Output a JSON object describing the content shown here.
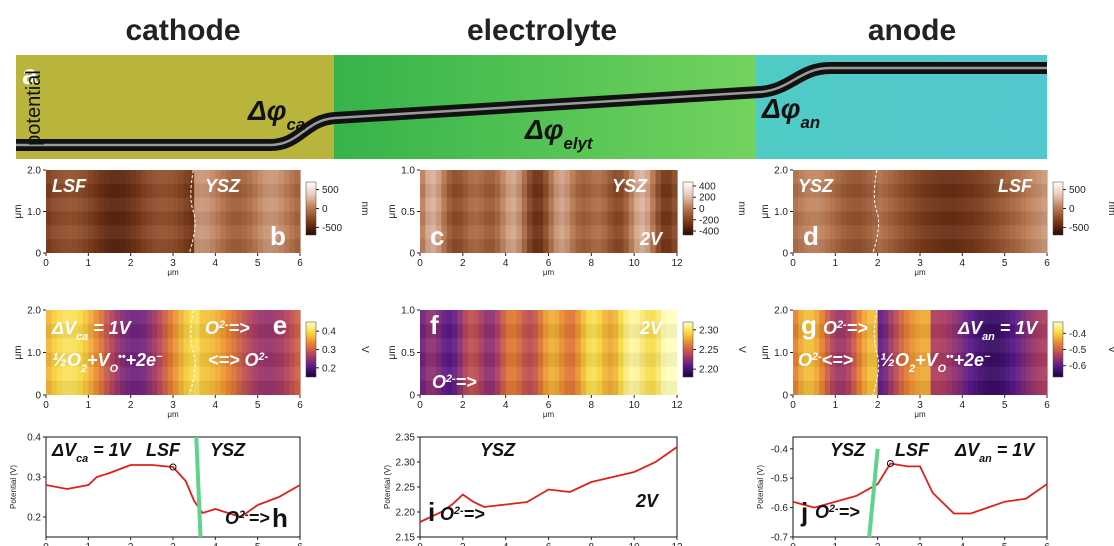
{
  "column_titles": [
    "cathode",
    "electrolyte",
    "anode"
  ],
  "schematic": {
    "label": "a",
    "ylabel": "potential",
    "annotations": [
      [
        "Δφ",
        {
          "sub": "ca"
        }
      ],
      [
        "Δφ",
        {
          "sub": "elyt"
        }
      ],
      [
        "Δφ",
        {
          "sub": "an"
        }
      ]
    ]
  },
  "chart_data": [
    {
      "type": "heatmap",
      "label": "b",
      "xlabel": "μm",
      "ylabel": "μm",
      "xlim": [
        0,
        6
      ],
      "xticks": [
        0,
        1,
        2,
        3,
        4,
        5,
        6
      ],
      "ylim": [
        0,
        2
      ],
      "yticks": [
        0,
        {
          "value": 1,
          "label": "1.0"
        },
        {
          "value": 2,
          "label": "2.0"
        }
      ],
      "colormap": [
        "#2a0800",
        "#7a3a1a",
        "#b87850",
        "#e8c8b8",
        "#ffffff"
      ],
      "clim": [
        -700,
        700
      ],
      "cticks": [
        500,
        0,
        -500
      ],
      "cunit": "nm",
      "annotations": [
        [
          "LSF"
        ],
        [
          "YSZ"
        ]
      ]
    },
    {
      "type": "heatmap",
      "label": "c",
      "xlabel": "μm",
      "ylabel": "μm",
      "xlim": [
        0,
        12
      ],
      "xticks": [
        0,
        2,
        4,
        6,
        8,
        10,
        12
      ],
      "ylim": [
        0,
        1
      ],
      "yticks": [
        0,
        0.5,
        {
          "value": 1,
          "label": "1.0"
        }
      ],
      "colormap": [
        "#2a0800",
        "#7a3a1a",
        "#b87850",
        "#e8c8b8",
        "#ffffff"
      ],
      "clim": [
        -470,
        470
      ],
      "cticks": [
        400,
        200,
        0,
        -200,
        -400
      ],
      "cunit": "nm",
      "annotations": [
        [
          "YSZ"
        ],
        [
          "2V"
        ]
      ]
    },
    {
      "type": "heatmap",
      "label": "d",
      "xlabel": "μm",
      "ylabel": "μm",
      "xlim": [
        0,
        6
      ],
      "xticks": [
        0,
        1,
        2,
        3,
        4,
        5,
        6
      ],
      "ylim": [
        0,
        2
      ],
      "yticks": [
        0,
        {
          "value": 1,
          "label": "1.0"
        },
        {
          "value": 2,
          "label": "2.0"
        }
      ],
      "colormap": [
        "#2a0800",
        "#7a3a1a",
        "#b87850",
        "#e8c8b8",
        "#ffffff"
      ],
      "clim": [
        -700,
        700
      ],
      "cticks": [
        500,
        0,
        -500
      ],
      "cunit": "nm",
      "annotations": [
        [
          "YSZ"
        ],
        [
          "LSF"
        ]
      ]
    },
    {
      "type": "heatmap",
      "label": "e",
      "xlabel": "μm",
      "ylabel": "μm",
      "xlim": [
        0,
        6
      ],
      "xticks": [
        0,
        1,
        2,
        3,
        4,
        5,
        6
      ],
      "ylim": [
        0,
        2
      ],
      "yticks": [
        0,
        {
          "value": 1,
          "label": "1.0"
        },
        {
          "value": 2,
          "label": "2.0"
        }
      ],
      "colormap": [
        "#1a0040",
        "#5a1a8a",
        "#b04060",
        "#e88030",
        "#f8d840",
        "#ffffc0"
      ],
      "clim": [
        0.15,
        0.45
      ],
      "cticks": [
        0.4,
        0.3,
        0.2
      ],
      "cunit": "V",
      "annotations": [
        [
          "ΔV",
          {
            "sub": "ca"
          },
          " = 1V"
        ],
        [
          "O",
          {
            "sup": "2-"
          },
          "=>"
        ],
        [
          "½O",
          {
            "sub": "2"
          },
          "+V",
          {
            "sub": "O"
          },
          {
            "sup": "••"
          },
          "+2e",
          {
            "sup": "−"
          }
        ],
        [
          "<=> O",
          {
            "sup": "2-"
          }
        ]
      ]
    },
    {
      "type": "heatmap",
      "label": "f",
      "xlabel": "μm",
      "ylabel": "μm",
      "xlim": [
        0,
        12
      ],
      "xticks": [
        0,
        2,
        4,
        6,
        8,
        10,
        12
      ],
      "ylim": [
        0,
        1
      ],
      "yticks": [
        0,
        0.5,
        {
          "value": 1,
          "label": "1.0"
        }
      ],
      "colormap": [
        "#1a0040",
        "#5a1a8a",
        "#b04060",
        "#e88030",
        "#f8d840",
        "#ffffc0"
      ],
      "clim": [
        2.18,
        2.32
      ],
      "cticks": [
        {
          "value": 2.3,
          "label": "2.30"
        },
        2.25,
        {
          "value": 2.2,
          "label": "2.20"
        }
      ],
      "cunit": "V",
      "annotations": [
        [
          "2V"
        ],
        [
          "O",
          {
            "sup": "2-"
          },
          "=>"
        ]
      ]
    },
    {
      "type": "heatmap",
      "label": "g",
      "xlabel": "μm",
      "ylabel": "μm",
      "xlim": [
        0,
        6
      ],
      "xticks": [
        0,
        1,
        2,
        3,
        4,
        5,
        6
      ],
      "ylim": [
        0,
        2
      ],
      "yticks": [
        0,
        {
          "value": 1,
          "label": "1.0"
        },
        {
          "value": 2,
          "label": "2.0"
        }
      ],
      "colormap": [
        "#1a0040",
        "#5a1a8a",
        "#b04060",
        "#e88030",
        "#f8d840",
        "#ffffc0"
      ],
      "clim": [
        -0.67,
        -0.33
      ],
      "cticks": [
        -0.4,
        -0.5,
        -0.6
      ],
      "cunit": "V",
      "annotations": [
        [
          "O",
          {
            "sup": "2-"
          },
          "=>"
        ],
        [
          "ΔV",
          {
            "sub": "an"
          },
          " = 1V"
        ],
        [
          "O",
          {
            "sup": "2-"
          },
          "<=>"
        ],
        [
          "½O",
          {
            "sub": "2"
          },
          "+V",
          {
            "sub": "O"
          },
          {
            "sup": "••"
          },
          "+2e",
          {
            "sup": "−"
          }
        ]
      ]
    },
    {
      "type": "line",
      "label": "h",
      "xlabel": "μm",
      "ylabel": "Potential (V)",
      "xlim": [
        0,
        6
      ],
      "xticks": [
        0,
        1,
        2,
        3,
        4,
        5,
        6
      ],
      "ylim": [
        0.15,
        0.4
      ],
      "yticks": [
        0.2,
        0.3,
        0.4
      ],
      "color": "#e0201a",
      "x": [
        0,
        0.5,
        1,
        1.2,
        1.5,
        2,
        2.5,
        3,
        3.3,
        3.5,
        3.7,
        4,
        4.3,
        4.6,
        5,
        5.5,
        6
      ],
      "values": [
        0.28,
        0.27,
        0.28,
        0.3,
        0.31,
        0.33,
        0.33,
        0.325,
        0.29,
        0.24,
        0.21,
        0.22,
        0.21,
        0.2,
        0.23,
        0.25,
        0.28
      ],
      "marker": {
        "x": 3,
        "y": 0.325
      },
      "boundary": {
        "color": "#5fd38d",
        "x": [
          3.55,
          3.65
        ],
        "y": [
          0.4,
          0.15
        ]
      },
      "annotations": [
        [
          "ΔV",
          {
            "sub": "ca"
          },
          " = 1V"
        ],
        [
          "LSF"
        ],
        [
          "YSZ"
        ],
        [
          "O",
          {
            "sup": "2-"
          },
          "=>"
        ]
      ]
    },
    {
      "type": "line",
      "label": "i",
      "xlabel": "μm",
      "ylabel": "Potential (V)",
      "xlim": [
        0,
        12
      ],
      "xticks": [
        0,
        2,
        4,
        6,
        8,
        10,
        12
      ],
      "ylim": [
        2.15,
        2.35
      ],
      "yticks": [
        2.15,
        {
          "value": 2.2,
          "label": "2.20"
        },
        2.25,
        {
          "value": 2.3,
          "label": "2.30"
        },
        2.35
      ],
      "color": "#e0201a",
      "x": [
        0,
        1,
        1.5,
        2,
        2.5,
        3,
        4,
        5,
        6,
        7,
        8,
        9,
        10,
        11,
        12
      ],
      "values": [
        2.18,
        2.2,
        2.215,
        2.235,
        2.22,
        2.21,
        2.215,
        2.22,
        2.245,
        2.24,
        2.26,
        2.27,
        2.28,
        2.3,
        2.33
      ],
      "annotations": [
        [
          "YSZ"
        ],
        [
          "2V"
        ],
        [
          "O",
          {
            "sup": "2-"
          },
          "=>"
        ]
      ]
    },
    {
      "type": "line",
      "label": "j",
      "xlabel": "μm",
      "ylabel": "Potential (V)",
      "xlim": [
        0,
        6
      ],
      "xticks": [
        0,
        1,
        2,
        3,
        4,
        5,
        6
      ],
      "ylim": [
        -0.7,
        -0.36
      ],
      "yticks": [
        -0.7,
        -0.6,
        -0.5,
        -0.4
      ],
      "color": "#e0201a",
      "x": [
        0,
        0.5,
        1,
        1.5,
        2,
        2.3,
        2.7,
        3,
        3.3,
        3.8,
        4.2,
        4.6,
        5,
        5.5,
        6
      ],
      "values": [
        -0.58,
        -0.6,
        -0.58,
        -0.56,
        -0.52,
        -0.45,
        -0.46,
        -0.46,
        -0.55,
        -0.62,
        -0.62,
        -0.6,
        -0.58,
        -0.57,
        -0.52
      ],
      "marker": {
        "x": 2.3,
        "y": -0.45
      },
      "boundary": {
        "color": "#5fd38d",
        "x": [
          1.8,
          2.0
        ],
        "y": [
          -0.7,
          -0.4
        ]
      },
      "annotations": [
        [
          "YSZ"
        ],
        [
          "LSF"
        ],
        [
          "ΔV",
          {
            "sub": "an"
          },
          " = 1V"
        ],
        [
          "O",
          {
            "sup": "2-"
          },
          "=>"
        ]
      ]
    }
  ]
}
